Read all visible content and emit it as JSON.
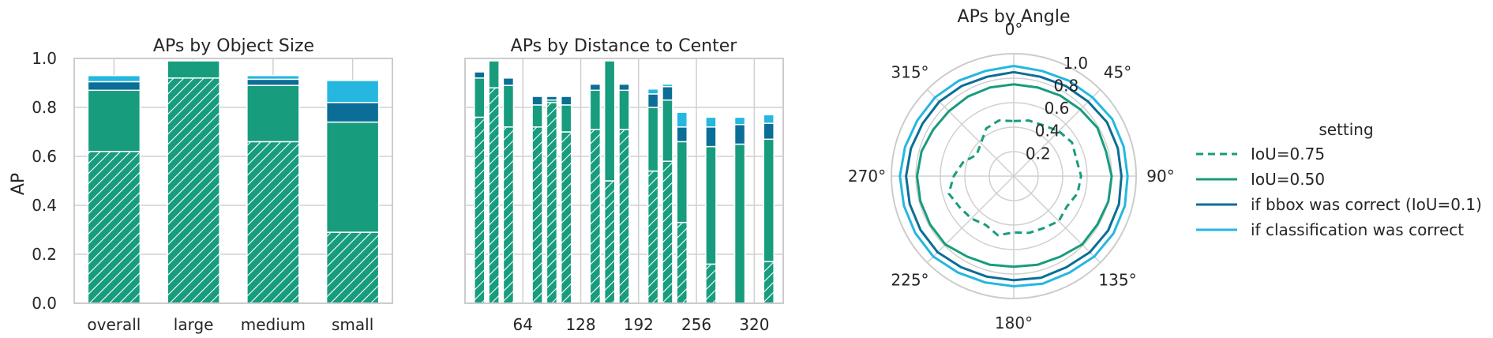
{
  "chart_data": [
    {
      "type": "bar",
      "title": "APs by Object Size",
      "ylabel": "AP",
      "xlabel": "",
      "ylim": [
        0,
        1
      ],
      "yticks": [
        "0.0",
        "0.2",
        "0.4",
        "0.6",
        "0.8",
        "1.0"
      ],
      "categories": [
        "overall",
        "large",
        "medium",
        "small"
      ],
      "stacked_cumulative": true,
      "series": [
        {
          "name": "IoU=0.75",
          "values": [
            0.62,
            0.92,
            0.66,
            0.29
          ],
          "hatched": true
        },
        {
          "name": "IoU=0.50",
          "values": [
            0.87,
            0.99,
            0.89,
            0.74
          ]
        },
        {
          "name": "if bbox was correct (IoU=0.1)",
          "values": [
            0.905,
            0.99,
            0.915,
            0.82
          ]
        },
        {
          "name": "if classification was correct",
          "values": [
            0.93,
            0.99,
            0.93,
            0.91
          ]
        }
      ]
    },
    {
      "type": "bar",
      "title": "APs by Distance to Center",
      "xlabel": "",
      "ylim": [
        0,
        1
      ],
      "xticks": [
        "64",
        "128",
        "192",
        "256",
        "320"
      ],
      "xtick_values": [
        64,
        128,
        192,
        256,
        320
      ],
      "x": [
        16,
        32,
        48,
        80,
        96,
        112,
        144,
        160,
        176,
        208,
        224,
        240,
        272,
        304,
        336
      ],
      "stacked_cumulative": true,
      "series": [
        {
          "name": "IoU=0.75",
          "values": [
            0.76,
            0.88,
            0.72,
            0.72,
            0.82,
            0.7,
            0.71,
            0.5,
            0.71,
            0.54,
            0.58,
            0.33,
            0.16,
            0.0,
            0.17
          ],
          "hatched": true
        },
        {
          "name": "IoU=0.50",
          "values": [
            0.92,
            0.99,
            0.89,
            0.81,
            0.83,
            0.81,
            0.87,
            0.99,
            0.87,
            0.8,
            0.83,
            0.66,
            0.64,
            0.65,
            0.67
          ]
        },
        {
          "name": "if bbox was correct (IoU=0.1)",
          "values": [
            0.945,
            0.99,
            0.92,
            0.845,
            0.845,
            0.845,
            0.895,
            0.99,
            0.895,
            0.855,
            0.885,
            0.72,
            0.72,
            0.73,
            0.735
          ]
        },
        {
          "name": "if classification was correct",
          "values": [
            0.945,
            0.99,
            0.92,
            0.845,
            0.845,
            0.845,
            0.895,
            0.99,
            0.895,
            0.875,
            0.895,
            0.78,
            0.76,
            0.76,
            0.77
          ]
        }
      ]
    },
    {
      "type": "line",
      "polar": true,
      "title": "APs by Angle",
      "rlim": [
        0,
        1
      ],
      "rticks": [
        "0.2",
        "0.4",
        "0.6",
        "0.8",
        "1.0"
      ],
      "angle_labels": [
        "0°",
        "45°",
        "90°",
        "135°",
        "180°",
        "225°",
        "270°",
        "315°"
      ],
      "x": [
        0,
        15,
        30,
        45,
        60,
        75,
        90,
        105,
        120,
        135,
        150,
        165,
        180,
        195,
        210,
        225,
        240,
        255,
        270,
        285,
        300,
        315,
        330,
        345
      ],
      "series": [
        {
          "name": "IoU=0.75",
          "style": "dashed",
          "values": [
            0.45,
            0.47,
            0.48,
            0.52,
            0.55,
            0.53,
            0.55,
            0.54,
            0.5,
            0.52,
            0.49,
            0.48,
            0.46,
            0.5,
            0.46,
            0.49,
            0.51,
            0.55,
            0.49,
            0.43,
            0.35,
            0.38,
            0.45,
            0.47
          ]
        },
        {
          "name": "IoU=0.50",
          "values": [
            0.75,
            0.75,
            0.76,
            0.77,
            0.79,
            0.78,
            0.8,
            0.8,
            0.79,
            0.79,
            0.76,
            0.75,
            0.74,
            0.75,
            0.76,
            0.79,
            0.79,
            0.79,
            0.79,
            0.78,
            0.76,
            0.75,
            0.75,
            0.75
          ]
        },
        {
          "name": "if bbox was correct (IoU=0.1)",
          "values": [
            0.85,
            0.84,
            0.85,
            0.86,
            0.88,
            0.88,
            0.88,
            0.89,
            0.89,
            0.88,
            0.86,
            0.86,
            0.85,
            0.85,
            0.86,
            0.88,
            0.88,
            0.88,
            0.88,
            0.87,
            0.86,
            0.86,
            0.85,
            0.84
          ]
        },
        {
          "name": "if classification was correct",
          "values": [
            0.9,
            0.89,
            0.9,
            0.91,
            0.93,
            0.93,
            0.93,
            0.94,
            0.94,
            0.93,
            0.91,
            0.91,
            0.9,
            0.9,
            0.91,
            0.93,
            0.93,
            0.93,
            0.93,
            0.92,
            0.91,
            0.91,
            0.9,
            0.89
          ]
        }
      ],
      "legend": {
        "title": "setting",
        "placement": "right"
      }
    }
  ],
  "colors": {
    "IoU=0.75": "#179c7d",
    "IoU=0.50": "#179c7d",
    "if bbox was correct (IoU=0.1)": "#0b6e96",
    "if classification was correct": "#25b7e0",
    "grid": "#d0d0d0",
    "spine": "#cccccc"
  }
}
